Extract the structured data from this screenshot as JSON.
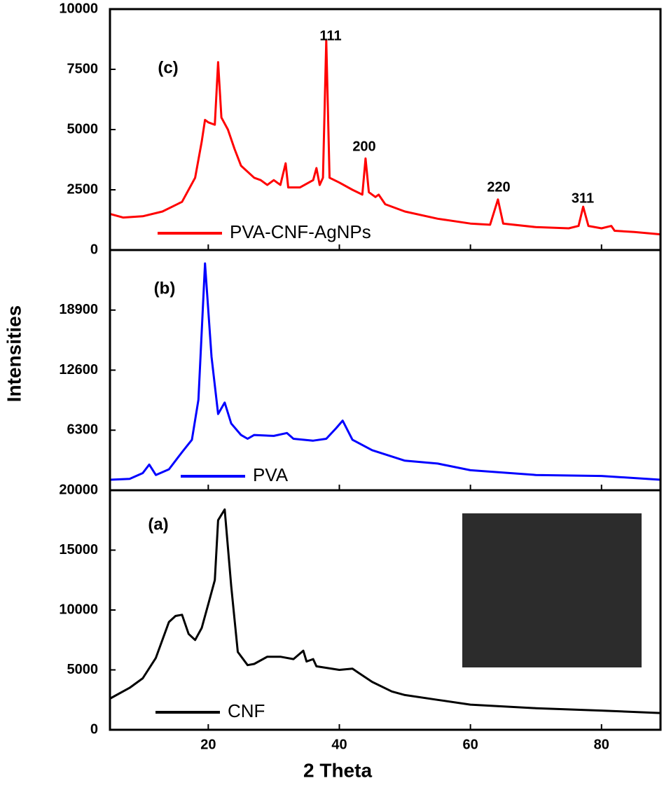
{
  "chart_data": [
    {
      "type": "line",
      "x": [
        5,
        7,
        10,
        13,
        16,
        18,
        19,
        19.5,
        20,
        21,
        21.5,
        22,
        23,
        24,
        25,
        27,
        28,
        29,
        30,
        31,
        31.8,
        32.2,
        34,
        36,
        36.5,
        37,
        37.5,
        38,
        38.5,
        40,
        42,
        43.5,
        44,
        44.5,
        45.5,
        46,
        47,
        50,
        55,
        60,
        63,
        64.2,
        65,
        70,
        75,
        76.5,
        77.2,
        78,
        80,
        81.5,
        82,
        85,
        89
      ],
      "series": [
        {
          "name": "PVA-CNF-AgNPs",
          "color": "#ff0000",
          "values": [
            1500,
            1350,
            1400,
            1600,
            2000,
            3000,
            4500,
            5400,
            5300,
            5200,
            7800,
            5500,
            5000,
            4200,
            3500,
            3000,
            2900,
            2700,
            2900,
            2700,
            3600,
            2600,
            2600,
            2900,
            3400,
            2700,
            3000,
            8700,
            3000,
            2800,
            2500,
            2300,
            3800,
            2400,
            2200,
            2300,
            1900,
            1600,
            1300,
            1100,
            1050,
            2100,
            1100,
            950,
            900,
            1000,
            1800,
            1000,
            900,
            1000,
            800,
            750,
            650
          ]
        }
      ],
      "xlim": [
        5,
        89
      ],
      "ylim": [
        0,
        10000
      ],
      "yticks": [
        0,
        2500,
        5000,
        7500,
        10000
      ],
      "legend": "lower left",
      "annotations": [
        "(c)",
        "111",
        "200",
        "220",
        "311"
      ]
    },
    {
      "type": "line",
      "x": [
        5,
        8,
        10,
        11,
        12,
        14,
        16,
        17.5,
        18.5,
        19.5,
        20.5,
        21.5,
        22.5,
        23.5,
        25,
        26,
        27,
        30,
        32,
        33,
        36,
        38,
        39.5,
        40.5,
        42,
        45,
        50,
        55,
        60,
        70,
        80,
        89
      ],
      "series": [
        {
          "name": "PVA",
          "color": "#0000ff",
          "values": [
            1100,
            1200,
            1800,
            2700,
            1600,
            2200,
            4000,
            5300,
            9500,
            23800,
            14000,
            8000,
            9200,
            7000,
            5800,
            5400,
            5800,
            5700,
            6000,
            5400,
            5200,
            5400,
            6500,
            7300,
            5300,
            4200,
            3100,
            2800,
            2100,
            1600,
            1500,
            1100
          ]
        }
      ],
      "xlim": [
        5,
        89
      ],
      "ylim": [
        0,
        25200
      ],
      "yticks": [
        6300,
        12600,
        18900
      ],
      "legend": "lower left",
      "annotations": [
        "(b)"
      ]
    },
    {
      "type": "line",
      "x": [
        5,
        8,
        10,
        12,
        14,
        15,
        16,
        17,
        18,
        19,
        20,
        21,
        21.5,
        22.5,
        23.5,
        24.5,
        26,
        27,
        29,
        31,
        33,
        34.5,
        35,
        36,
        36.5,
        40,
        42,
        45,
        48,
        50,
        55,
        60,
        70,
        80,
        89
      ],
      "series": [
        {
          "name": "CNF",
          "color": "#000000",
          "values": [
            2600,
            3500,
            4300,
            6000,
            9000,
            9500,
            9600,
            8000,
            7500,
            8500,
            10500,
            12500,
            17500,
            18400,
            12000,
            6500,
            5400,
            5500,
            6100,
            6100,
            5900,
            6600,
            5700,
            5900,
            5300,
            5000,
            5100,
            4000,
            3200,
            2900,
            2500,
            2100,
            1800,
            1600,
            1400
          ]
        }
      ],
      "xlim": [
        5,
        89
      ],
      "ylim": [
        0,
        20000
      ],
      "yticks": [
        0,
        5000,
        10000,
        15000,
        20000
      ],
      "xticks": [
        20,
        40,
        60,
        80
      ],
      "xlabel": "2 Theta",
      "ylabel": "Intensities",
      "legend": "lower left",
      "annotations": [
        "(a)"
      ]
    }
  ]
}
